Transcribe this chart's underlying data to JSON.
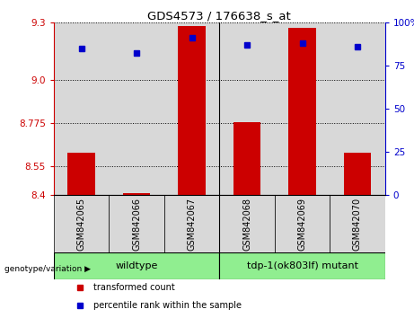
{
  "title": "GDS4573 / 176638_s_at",
  "samples": [
    "GSM842065",
    "GSM842066",
    "GSM842067",
    "GSM842068",
    "GSM842069",
    "GSM842070"
  ],
  "red_values": [
    8.62,
    8.41,
    9.28,
    8.78,
    9.27,
    8.62
  ],
  "blue_values": [
    85,
    82,
    91,
    87,
    88,
    86
  ],
  "y_min": 8.4,
  "y_max": 9.3,
  "y_ticks": [
    8.4,
    8.55,
    8.775,
    9.0,
    9.3
  ],
  "y_right_ticks": [
    0,
    25,
    50,
    75,
    100
  ],
  "y_right_labels": [
    "0",
    "25",
    "50",
    "75",
    "100%"
  ],
  "bar_color": "#cc0000",
  "dot_color": "#0000cc",
  "wildtype_label": "wildtype",
  "mutant_label": "tdp-1(ok803lf) mutant",
  "genotype_label": "genotype/variation",
  "legend_red": "transformed count",
  "legend_blue": "percentile rank within the sample",
  "tick_color_left": "#cc0000",
  "tick_color_right": "#0000cc",
  "col_bg_color": "#d8d8d8",
  "green_color": "#90EE90",
  "white_bg": "#ffffff"
}
